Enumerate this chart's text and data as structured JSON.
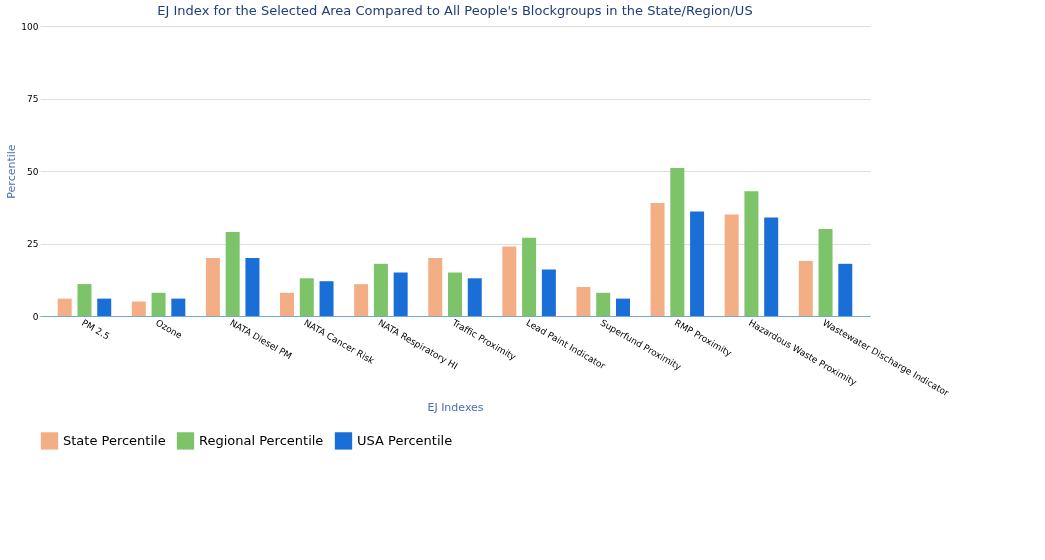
{
  "chart_data": {
    "type": "bar",
    "title": "EJ Index for the Selected Area Compared to All People's Blockgroups in the State/Region/US",
    "xlabel": "EJ Indexes",
    "ylabel": "Percentile",
    "categories": [
      "PM 2.5",
      "Ozone",
      "NATA Diesel PM",
      "NATA Cancer Risk",
      "NATA Respiratory HI",
      "Traffic Proximity",
      "Lead Paint Indicator",
      "Superfund Proximity",
      "RMP Proximity",
      "Hazardous Waste Proximity",
      "Wastewater Discharge Indicator"
    ],
    "series": [
      {
        "name": "State Percentile",
        "color": "#f4ae86",
        "values": [
          6,
          5,
          20,
          8,
          11,
          20,
          24,
          10,
          39,
          35,
          19
        ]
      },
      {
        "name": "Regional Percentile",
        "color": "#7cc36a",
        "values": [
          11,
          8,
          29,
          13,
          18,
          15,
          27,
          8,
          51,
          43,
          30
        ]
      },
      {
        "name": "USA Percentile",
        "color": "#1a6fd6",
        "values": [
          6,
          6,
          20,
          12,
          15,
          13,
          16,
          6,
          36,
          34,
          18
        ]
      }
    ],
    "ylim": [
      0,
      100
    ],
    "yticks": [
      0,
      25,
      50,
      75,
      100
    ],
    "grid": "y",
    "legend": "bottom"
  }
}
